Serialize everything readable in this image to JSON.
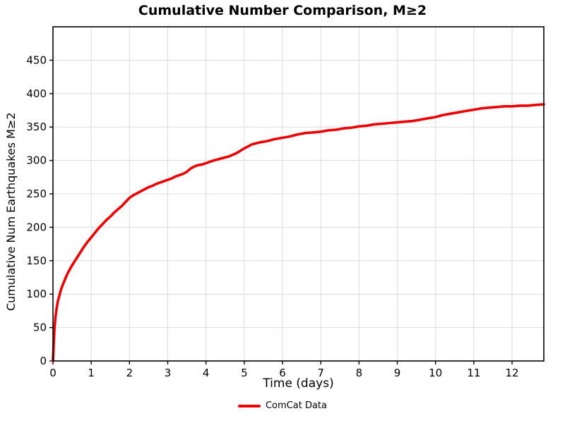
{
  "colors": {
    "line": "#ee0000",
    "grid": "#dcdcdc",
    "axis": "#000000",
    "background": "#ffffff"
  },
  "legend": {
    "label": "ComCat Data"
  },
  "chart_data": {
    "type": "line",
    "title": "Cumulative Number Comparison, M≥2",
    "xlabel": "Time (days)",
    "ylabel": "Cumulative Num Earthquakes M≥2",
    "xlim": [
      0,
      12.83
    ],
    "ylim": [
      0,
      500
    ],
    "xticks": [
      0,
      1,
      2,
      3,
      4,
      5,
      6,
      7,
      8,
      9,
      10,
      11,
      12
    ],
    "yticks": [
      0,
      50,
      100,
      150,
      200,
      250,
      300,
      350,
      400,
      450
    ],
    "grid": true,
    "legend_position": "bottom-center",
    "x": [
      0,
      0.02,
      0.04,
      0.07,
      0.1,
      0.13,
      0.17,
      0.2,
      0.25,
      0.3,
      0.35,
      0.4,
      0.45,
      0.5,
      0.6,
      0.7,
      0.8,
      0.9,
      1.0,
      1.1,
      1.2,
      1.3,
      1.4,
      1.5,
      1.6,
      1.7,
      1.8,
      1.9,
      2.0,
      2.1,
      2.2,
      2.3,
      2.4,
      2.5,
      2.6,
      2.7,
      2.8,
      2.9,
      3.0,
      3.1,
      3.2,
      3.3,
      3.4,
      3.5,
      3.6,
      3.7,
      3.8,
      3.9,
      4.0,
      4.1,
      4.2,
      4.4,
      4.6,
      4.8,
      5.0,
      5.1,
      5.2,
      5.4,
      5.6,
      5.8,
      6.0,
      6.2,
      6.4,
      6.6,
      6.8,
      7.0,
      7.2,
      7.4,
      7.6,
      7.8,
      8.0,
      8.2,
      8.4,
      8.6,
      8.8,
      9.0,
      9.2,
      9.4,
      9.6,
      9.8,
      10.0,
      10.2,
      10.4,
      10.6,
      10.8,
      11.0,
      11.2,
      11.4,
      11.6,
      11.8,
      12.0,
      12.2,
      12.4,
      12.6,
      12.83
    ],
    "series": [
      {
        "name": "ComCat Data",
        "color": "#ee0000",
        "values": [
          0,
          25,
          50,
          68,
          80,
          90,
          98,
          105,
          113,
          120,
          127,
          133,
          138,
          143,
          152,
          161,
          170,
          178,
          185,
          192,
          199,
          205,
          211,
          216,
          222,
          227,
          232,
          238,
          244,
          248,
          251,
          254,
          257,
          260,
          262,
          265,
          267,
          269,
          271,
          273,
          276,
          278,
          280,
          283,
          288,
          291,
          293,
          294,
          296,
          298,
          300,
          303,
          306,
          311,
          318,
          321,
          324,
          327,
          329,
          332,
          334,
          336,
          339,
          341,
          342,
          343,
          345,
          346,
          348,
          349,
          351,
          352,
          354,
          355,
          356,
          357,
          358,
          359,
          361,
          363,
          365,
          368,
          370,
          372,
          374,
          376,
          378,
          379,
          380,
          381,
          381,
          382,
          382,
          383,
          384
        ]
      }
    ]
  }
}
